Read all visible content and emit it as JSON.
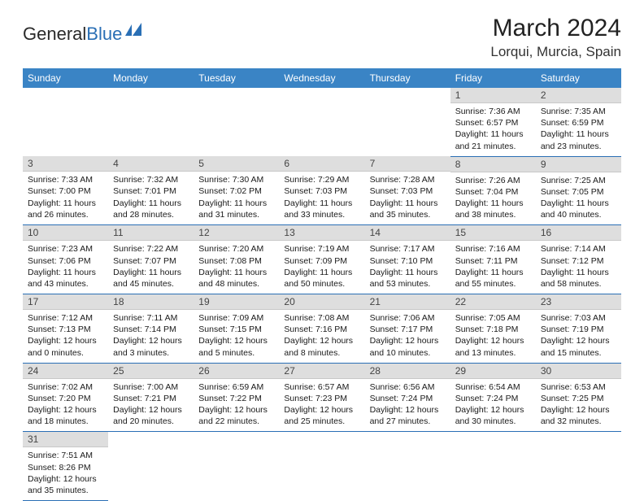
{
  "brand": {
    "general": "General",
    "blue": "Blue"
  },
  "title": {
    "month": "March 2024",
    "location": "Lorqui, Murcia, Spain"
  },
  "colors": {
    "header_bg": "#3a84c5",
    "header_text": "#ffffff",
    "daynum_bg": "#dedede",
    "cell_border": "#2a6fb5",
    "logo_blue": "#2a6fb5"
  },
  "weekdays": [
    "Sunday",
    "Monday",
    "Tuesday",
    "Wednesday",
    "Thursday",
    "Friday",
    "Saturday"
  ],
  "labels": {
    "sunrise": "Sunrise:",
    "sunset": "Sunset:",
    "daylight": "Daylight:"
  },
  "weeks": [
    [
      null,
      null,
      null,
      null,
      null,
      {
        "n": 1,
        "sr": "7:36 AM",
        "ss": "6:57 PM",
        "dl": "11 hours and 21 minutes."
      },
      {
        "n": 2,
        "sr": "7:35 AM",
        "ss": "6:59 PM",
        "dl": "11 hours and 23 minutes."
      }
    ],
    [
      {
        "n": 3,
        "sr": "7:33 AM",
        "ss": "7:00 PM",
        "dl": "11 hours and 26 minutes."
      },
      {
        "n": 4,
        "sr": "7:32 AM",
        "ss": "7:01 PM",
        "dl": "11 hours and 28 minutes."
      },
      {
        "n": 5,
        "sr": "7:30 AM",
        "ss": "7:02 PM",
        "dl": "11 hours and 31 minutes."
      },
      {
        "n": 6,
        "sr": "7:29 AM",
        "ss": "7:03 PM",
        "dl": "11 hours and 33 minutes."
      },
      {
        "n": 7,
        "sr": "7:28 AM",
        "ss": "7:03 PM",
        "dl": "11 hours and 35 minutes."
      },
      {
        "n": 8,
        "sr": "7:26 AM",
        "ss": "7:04 PM",
        "dl": "11 hours and 38 minutes."
      },
      {
        "n": 9,
        "sr": "7:25 AM",
        "ss": "7:05 PM",
        "dl": "11 hours and 40 minutes."
      }
    ],
    [
      {
        "n": 10,
        "sr": "7:23 AM",
        "ss": "7:06 PM",
        "dl": "11 hours and 43 minutes."
      },
      {
        "n": 11,
        "sr": "7:22 AM",
        "ss": "7:07 PM",
        "dl": "11 hours and 45 minutes."
      },
      {
        "n": 12,
        "sr": "7:20 AM",
        "ss": "7:08 PM",
        "dl": "11 hours and 48 minutes."
      },
      {
        "n": 13,
        "sr": "7:19 AM",
        "ss": "7:09 PM",
        "dl": "11 hours and 50 minutes."
      },
      {
        "n": 14,
        "sr": "7:17 AM",
        "ss": "7:10 PM",
        "dl": "11 hours and 53 minutes."
      },
      {
        "n": 15,
        "sr": "7:16 AM",
        "ss": "7:11 PM",
        "dl": "11 hours and 55 minutes."
      },
      {
        "n": 16,
        "sr": "7:14 AM",
        "ss": "7:12 PM",
        "dl": "11 hours and 58 minutes."
      }
    ],
    [
      {
        "n": 17,
        "sr": "7:12 AM",
        "ss": "7:13 PM",
        "dl": "12 hours and 0 minutes."
      },
      {
        "n": 18,
        "sr": "7:11 AM",
        "ss": "7:14 PM",
        "dl": "12 hours and 3 minutes."
      },
      {
        "n": 19,
        "sr": "7:09 AM",
        "ss": "7:15 PM",
        "dl": "12 hours and 5 minutes."
      },
      {
        "n": 20,
        "sr": "7:08 AM",
        "ss": "7:16 PM",
        "dl": "12 hours and 8 minutes."
      },
      {
        "n": 21,
        "sr": "7:06 AM",
        "ss": "7:17 PM",
        "dl": "12 hours and 10 minutes."
      },
      {
        "n": 22,
        "sr": "7:05 AM",
        "ss": "7:18 PM",
        "dl": "12 hours and 13 minutes."
      },
      {
        "n": 23,
        "sr": "7:03 AM",
        "ss": "7:19 PM",
        "dl": "12 hours and 15 minutes."
      }
    ],
    [
      {
        "n": 24,
        "sr": "7:02 AM",
        "ss": "7:20 PM",
        "dl": "12 hours and 18 minutes."
      },
      {
        "n": 25,
        "sr": "7:00 AM",
        "ss": "7:21 PM",
        "dl": "12 hours and 20 minutes."
      },
      {
        "n": 26,
        "sr": "6:59 AM",
        "ss": "7:22 PM",
        "dl": "12 hours and 22 minutes."
      },
      {
        "n": 27,
        "sr": "6:57 AM",
        "ss": "7:23 PM",
        "dl": "12 hours and 25 minutes."
      },
      {
        "n": 28,
        "sr": "6:56 AM",
        "ss": "7:24 PM",
        "dl": "12 hours and 27 minutes."
      },
      {
        "n": 29,
        "sr": "6:54 AM",
        "ss": "7:24 PM",
        "dl": "12 hours and 30 minutes."
      },
      {
        "n": 30,
        "sr": "6:53 AM",
        "ss": "7:25 PM",
        "dl": "12 hours and 32 minutes."
      }
    ],
    [
      {
        "n": 31,
        "sr": "7:51 AM",
        "ss": "8:26 PM",
        "dl": "12 hours and 35 minutes."
      },
      null,
      null,
      null,
      null,
      null,
      null
    ]
  ]
}
